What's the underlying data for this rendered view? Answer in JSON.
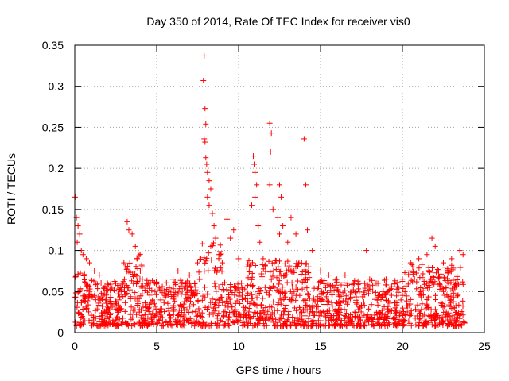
{
  "chart_data": {
    "type": "scatter",
    "title": "Day 350 of 2014, Rate Of TEC Index for receiver vis0",
    "xlabel": "GPS time / hours",
    "ylabel": "ROTI / TECUs",
    "xlim": [
      0,
      25
    ],
    "ylim": [
      0,
      0.35
    ],
    "xticks": [
      0,
      5,
      10,
      15,
      20,
      25
    ],
    "xtick_labels": [
      "0",
      "5",
      "10",
      "15",
      "20",
      "25"
    ],
    "yticks": [
      0,
      0.05,
      0.1,
      0.15,
      0.2,
      0.25,
      0.3,
      0.35
    ],
    "ytick_labels": [
      "0",
      "0.05",
      "0.1",
      "0.15",
      "0.2",
      "0.25",
      "0.3",
      "0.35"
    ],
    "grid": true,
    "marker": "+",
    "color": "#ff0000",
    "series": [
      {
        "name": "ROTI",
        "points": [
          [
            0.02,
            0.165
          ],
          [
            0.1,
            0.14
          ],
          [
            0.2,
            0.13
          ],
          [
            0.3,
            0.12
          ],
          [
            0.15,
            0.11
          ],
          [
            0.4,
            0.1
          ],
          [
            0.5,
            0.095
          ],
          [
            0.7,
            0.09
          ],
          [
            0.9,
            0.085
          ],
          [
            1.2,
            0.075
          ],
          [
            1.5,
            0.07
          ],
          [
            1.0,
            0.065
          ],
          [
            2.0,
            0.06
          ],
          [
            2.5,
            0.06
          ],
          [
            3.0,
            0.085
          ],
          [
            3.2,
            0.135
          ],
          [
            3.3,
            0.125
          ],
          [
            3.5,
            0.12
          ],
          [
            3.7,
            0.105
          ],
          [
            3.8,
            0.09
          ],
          [
            4.0,
            0.075
          ],
          [
            4.5,
            0.06
          ],
          [
            5.0,
            0.06
          ],
          [
            6.0,
            0.065
          ],
          [
            6.3,
            0.075
          ],
          [
            7.0,
            0.07
          ],
          [
            7.5,
            0.085
          ],
          [
            7.9,
            0.337
          ],
          [
            7.85,
            0.307
          ],
          [
            7.95,
            0.273
          ],
          [
            8.0,
            0.254
          ],
          [
            7.9,
            0.236
          ],
          [
            7.95,
            0.232
          ],
          [
            8.0,
            0.213
          ],
          [
            8.05,
            0.205
          ],
          [
            8.1,
            0.195
          ],
          [
            8.2,
            0.185
          ],
          [
            8.3,
            0.175
          ],
          [
            8.1,
            0.165
          ],
          [
            8.2,
            0.155
          ],
          [
            8.4,
            0.145
          ],
          [
            8.5,
            0.13
          ],
          [
            8.6,
            0.115
          ],
          [
            8.3,
            0.105
          ],
          [
            8.8,
            0.095
          ],
          [
            9.0,
            0.085
          ],
          [
            9.3,
            0.138
          ],
          [
            9.5,
            0.115
          ],
          [
            9.7,
            0.125
          ],
          [
            10.0,
            0.09
          ],
          [
            10.5,
            0.08
          ],
          [
            10.8,
            0.155
          ],
          [
            10.9,
            0.215
          ],
          [
            10.95,
            0.205
          ],
          [
            11.0,
            0.195
          ],
          [
            11.1,
            0.18
          ],
          [
            11.0,
            0.165
          ],
          [
            11.2,
            0.13
          ],
          [
            11.3,
            0.11
          ],
          [
            11.5,
            0.09
          ],
          [
            11.9,
            0.255
          ],
          [
            12.0,
            0.243
          ],
          [
            11.95,
            0.22
          ],
          [
            11.9,
            0.18
          ],
          [
            12.1,
            0.15
          ],
          [
            12.5,
            0.18
          ],
          [
            12.6,
            0.165
          ],
          [
            12.4,
            0.14
          ],
          [
            12.7,
            0.13
          ],
          [
            12.5,
            0.12
          ],
          [
            13.0,
            0.11
          ],
          [
            13.2,
            0.14
          ],
          [
            13.5,
            0.12
          ],
          [
            14.0,
            0.236
          ],
          [
            14.1,
            0.18
          ],
          [
            14.2,
            0.125
          ],
          [
            14.5,
            0.1
          ],
          [
            15.0,
            0.075
          ],
          [
            15.5,
            0.07
          ],
          [
            16.0,
            0.065
          ],
          [
            16.5,
            0.07
          ],
          [
            17.0,
            0.06
          ],
          [
            17.8,
            0.1
          ],
          [
            18.0,
            0.065
          ],
          [
            18.5,
            0.06
          ],
          [
            19.0,
            0.065
          ],
          [
            19.5,
            0.06
          ],
          [
            20.0,
            0.065
          ],
          [
            20.5,
            0.085
          ],
          [
            21.0,
            0.09
          ],
          [
            21.5,
            0.095
          ],
          [
            21.8,
            0.115
          ],
          [
            22.0,
            0.105
          ],
          [
            22.5,
            0.085
          ],
          [
            23.0,
            0.09
          ],
          [
            23.5,
            0.1
          ],
          [
            23.7,
            0.095
          ]
        ]
      }
    ]
  }
}
